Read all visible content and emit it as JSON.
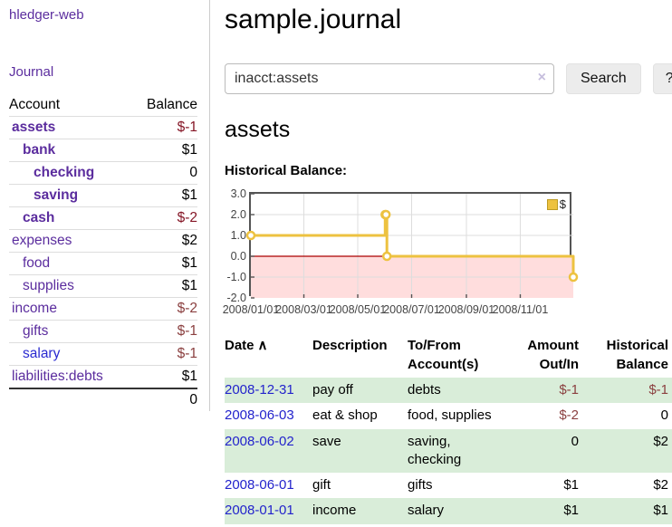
{
  "app": {
    "name": "hledger-web"
  },
  "sidebar": {
    "journal_link": "Journal",
    "accounts_table": {
      "account_header": "Account",
      "balance_header": "Balance",
      "rows": [
        {
          "name": "assets",
          "depth": 1,
          "bold": true,
          "balance": "$-1",
          "negative": true,
          "link_color": "purple"
        },
        {
          "name": "bank",
          "depth": 2,
          "bold": true,
          "balance": "$1",
          "negative": false,
          "link_color": "purple"
        },
        {
          "name": "checking",
          "depth": 3,
          "bold": true,
          "balance": "0",
          "negative": false,
          "link_color": "purple"
        },
        {
          "name": "saving",
          "depth": 3,
          "bold": true,
          "balance": "$1",
          "negative": false,
          "link_color": "purple"
        },
        {
          "name": "cash",
          "depth": 2,
          "bold": true,
          "balance": "$-2",
          "negative": true,
          "link_color": "purple"
        },
        {
          "name": "expenses",
          "depth": 1,
          "bold": false,
          "balance": "$2",
          "negative": false,
          "link_color": "purple"
        },
        {
          "name": "food",
          "depth": 2,
          "bold": false,
          "balance": "$1",
          "negative": false,
          "link_color": "purple"
        },
        {
          "name": "supplies",
          "depth": 2,
          "bold": false,
          "balance": "$1",
          "negative": false,
          "link_color": "purple"
        },
        {
          "name": "income",
          "depth": 1,
          "bold": false,
          "balance": "$-2",
          "negative": true,
          "link_color": "purple"
        },
        {
          "name": "gifts",
          "depth": 2,
          "bold": false,
          "balance": "$-1",
          "negative": true,
          "link_color": "purple"
        },
        {
          "name": "salary",
          "depth": 2,
          "bold": false,
          "balance": "$-1",
          "negative": true,
          "link_color": "blue"
        },
        {
          "name": "liabilities:debts",
          "depth": 1,
          "bold": false,
          "balance": "$1",
          "negative": false,
          "link_color": "purple"
        }
      ],
      "total": "0"
    }
  },
  "header": {
    "title": "sample.journal"
  },
  "search": {
    "value": "inacct:assets",
    "clear_icon": "×",
    "button_label": "Search",
    "help_label": "?"
  },
  "account_page": {
    "heading": "assets",
    "chart_label": "Historical Balance:"
  },
  "chart_data": {
    "type": "line",
    "title": "Historical Balance of assets",
    "step": true,
    "series": [
      {
        "name": "$",
        "color": "#edc240",
        "x": [
          "2008-01-01",
          "2008-06-01",
          "2008-06-02",
          "2008-06-03",
          "2008-12-31"
        ],
        "values": [
          1,
          2,
          2,
          0,
          -1
        ]
      }
    ],
    "x_domain": [
      "2008-01-01",
      "2008-12-31"
    ],
    "x_ticks": [
      {
        "date": "2008-01-01",
        "label": "2008/01/01"
      },
      {
        "date": "2008-03-01",
        "label": "2008/03/01"
      },
      {
        "date": "2008-05-01",
        "label": "2008/05/01"
      },
      {
        "date": "2008-07-01",
        "label": "2008/07/01"
      },
      {
        "date": "2008-09-01",
        "label": "2008/09/01"
      },
      {
        "date": "2008-11-01",
        "label": "2008/11/01"
      }
    ],
    "ylim": [
      -2,
      3
    ],
    "y_ticks": [
      {
        "value": 3,
        "label": "3.0"
      },
      {
        "value": 2,
        "label": "2.0"
      },
      {
        "value": 1,
        "label": "1.0"
      },
      {
        "value": 0,
        "label": "0.0"
      },
      {
        "value": -1,
        "label": "-1.0"
      },
      {
        "value": -2,
        "label": "-2.0"
      }
    ],
    "grid": true,
    "grid_color": "#dddddd",
    "border_color": "#545454",
    "zero_line_color": "#aa0000",
    "negative_fill": "#ffdddd",
    "marker_fill": "#ffffff",
    "legend": {
      "position": "top-right",
      "label": "$",
      "swatch_color": "#edc240"
    }
  },
  "register": {
    "columns": [
      {
        "label": "Date",
        "sort_indicator": "∧",
        "align": "left"
      },
      {
        "label": "Description",
        "align": "left"
      },
      {
        "label": "To/From Account(s)",
        "align": "left"
      },
      {
        "label": "Amount Out/In",
        "align": "right"
      },
      {
        "label": "Historical Balance",
        "align": "right"
      }
    ],
    "rows": [
      {
        "date": "2008-12-31",
        "description": "pay off",
        "accounts": "debts",
        "amount": "$-1",
        "amount_negative": true,
        "balance": "$-1",
        "balance_negative": true
      },
      {
        "date": "2008-06-03",
        "description": "eat & shop",
        "accounts": "food, supplies",
        "amount": "$-2",
        "amount_negative": true,
        "balance": "0",
        "balance_negative": false
      },
      {
        "date": "2008-06-02",
        "description": "save",
        "accounts": "saving, checking",
        "amount": "0",
        "amount_negative": false,
        "balance": "$2",
        "balance_negative": false
      },
      {
        "date": "2008-06-01",
        "description": "gift",
        "accounts": "gifts",
        "amount": "$1",
        "amount_negative": false,
        "balance": "$2",
        "balance_negative": false
      },
      {
        "date": "2008-01-01",
        "description": "income",
        "accounts": "salary",
        "amount": "$1",
        "amount_negative": false,
        "balance": "$1",
        "balance_negative": false
      }
    ],
    "row_highlight_color": "#d9edd9"
  }
}
